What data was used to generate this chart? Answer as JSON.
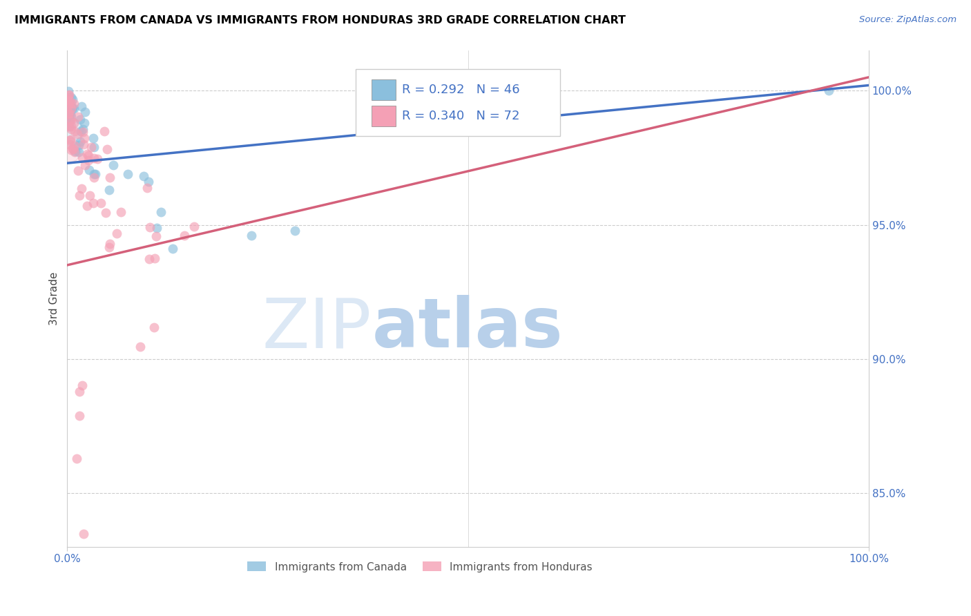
{
  "title": "IMMIGRANTS FROM CANADA VS IMMIGRANTS FROM HONDURAS 3RD GRADE CORRELATION CHART",
  "source": "Source: ZipAtlas.com",
  "ylabel": "3rd Grade",
  "legend_canada": "Immigrants from Canada",
  "legend_honduras": "Immigrants from Honduras",
  "r_canada": "R = 0.292",
  "n_canada": "N = 46",
  "r_honduras": "R = 0.340",
  "n_honduras": "N = 72",
  "canada_color": "#8bbfdd",
  "honduras_color": "#f4a0b5",
  "canada_line_color": "#4472c4",
  "honduras_line_color": "#d4607a",
  "grid_color": "#cccccc",
  "tick_color": "#4472c4",
  "title_color": "#000000",
  "source_color": "#4472c4",
  "ylabel_color": "#444444",
  "watermark_zip_color": "#dce8f5",
  "watermark_atlas_color": "#b8d0ea",
  "y_min": 83.0,
  "y_max": 101.5,
  "x_min": 0.0,
  "x_max": 100.0,
  "yticks": [
    85.0,
    90.0,
    95.0,
    100.0
  ],
  "xticks": [
    0.0,
    100.0
  ],
  "canada_line_x0": 0,
  "canada_line_y0": 97.3,
  "canada_line_x1": 100,
  "canada_line_y1": 100.2,
  "honduras_line_x0": 0,
  "honduras_line_y0": 93.5,
  "honduras_line_x1": 100,
  "honduras_line_y1": 100.5
}
